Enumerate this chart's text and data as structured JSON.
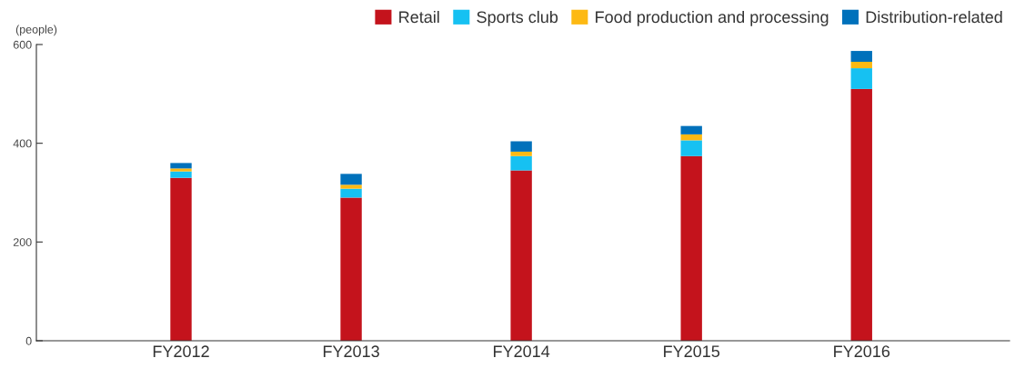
{
  "chart_data": {
    "type": "bar",
    "stacked": true,
    "ylabel": "(people)",
    "categories": [
      "FY2012",
      "FY2013",
      "FY2014",
      "FY2015",
      "FY2016"
    ],
    "series": [
      {
        "name": "Retail",
        "color": "#c4131c",
        "values": [
          330,
          290,
          345,
          374,
          510
        ]
      },
      {
        "name": "Sports club",
        "color": "#16c1f2",
        "values": [
          13,
          18,
          29,
          32,
          42
        ]
      },
      {
        "name": "Food production and processing",
        "color": "#fdb913",
        "values": [
          6,
          8,
          9,
          12,
          13
        ]
      },
      {
        "name": "Distribution-related",
        "color": "#0071bb",
        "values": [
          11,
          22,
          21,
          17,
          22
        ]
      }
    ],
    "ylim": [
      0,
      600
    ],
    "yticks": [
      0,
      200,
      400,
      600
    ],
    "grid": false,
    "legend": "top right"
  }
}
